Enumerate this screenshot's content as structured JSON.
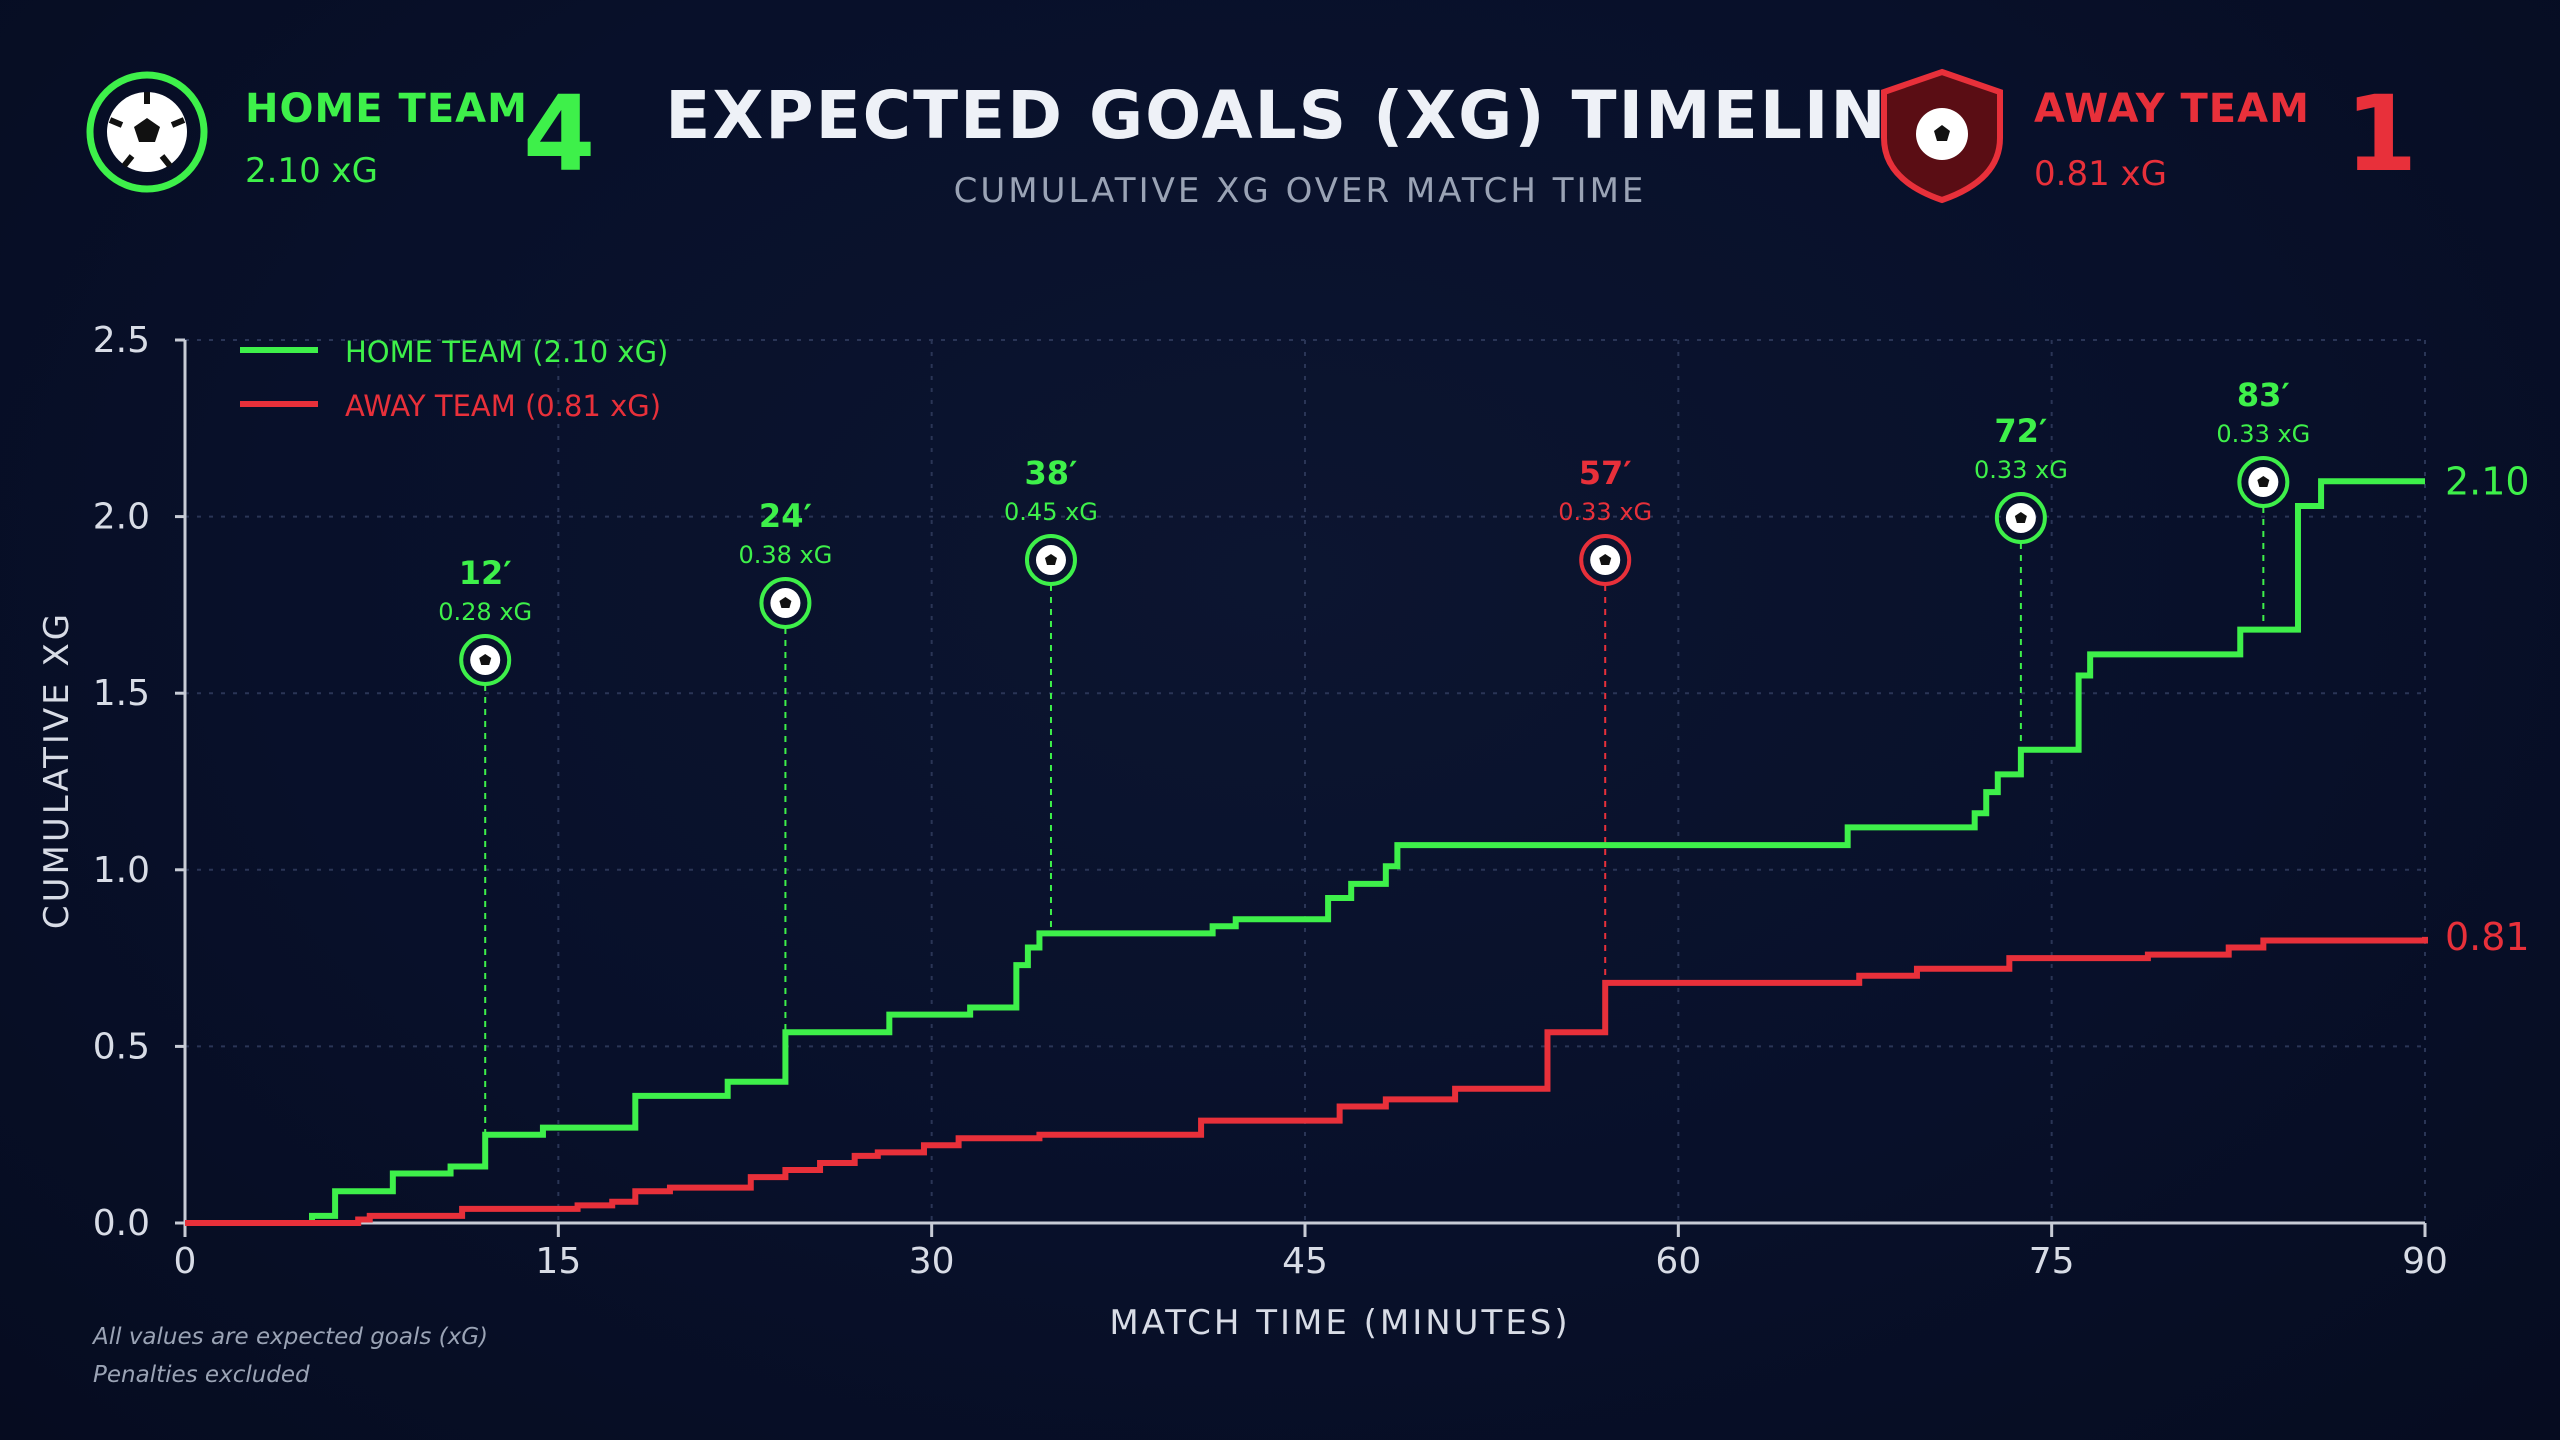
{
  "header": {
    "title": "EXPECTED GOALS (XG) TIMELINE",
    "subtitle": "CUMULATIVE XG OVER MATCH TIME"
  },
  "home": {
    "name": "HOME TEAM",
    "xg_text": "2.10 xG",
    "score": "4",
    "color": "#3ef04a",
    "icon": "soccer-ball-icon"
  },
  "away": {
    "name": "AWAY TEAM",
    "xg_text": "0.81 xG",
    "score": "1",
    "color": "#e8303a",
    "icon": "shield-crest-icon"
  },
  "footnotes": [
    "All values are expected goals (xG)",
    "Penalties excluded"
  ],
  "chart_data": {
    "type": "line",
    "step": true,
    "xlabel": "MATCH TIME (MINUTES)",
    "ylabel": "CUMULATIVE XG",
    "xlim": [
      0,
      90
    ],
    "ylim": [
      0,
      2.5
    ],
    "xticks": [
      0,
      15,
      30,
      45,
      60,
      75,
      90
    ],
    "yticks": [
      "0.0",
      "0.5",
      "1.0",
      "1.5",
      "2.0",
      "2.5"
    ],
    "grid": true,
    "legend_position": "top-left",
    "series": [
      {
        "name": "HOME TEAM (2.10 xG)",
        "color": "#3ef04a",
        "end_label": "2.10",
        "points": [
          [
            0,
            0
          ],
          [
            5.5,
            0.02
          ],
          [
            6.5,
            0.09
          ],
          [
            9,
            0.14
          ],
          [
            11.5,
            0.16
          ],
          [
            13,
            0.25
          ],
          [
            15.5,
            0.27
          ],
          [
            19.5,
            0.36
          ],
          [
            23.5,
            0.4
          ],
          [
            26,
            0.54
          ],
          [
            30.5,
            0.59
          ],
          [
            34,
            0.61
          ],
          [
            36,
            0.73
          ],
          [
            36.5,
            0.78
          ],
          [
            37,
            0.82
          ],
          [
            44.5,
            0.84
          ],
          [
            45.5,
            0.86
          ],
          [
            49.5,
            0.92
          ],
          [
            50.5,
            0.96
          ],
          [
            52,
            1.01
          ],
          [
            52.5,
            1.07
          ],
          [
            72,
            1.12
          ],
          [
            77.5,
            1.16
          ],
          [
            78,
            1.22
          ],
          [
            78.5,
            1.27
          ],
          [
            79.5,
            1.34
          ],
          [
            82,
            1.55
          ],
          [
            82.5,
            1.61
          ],
          [
            89,
            1.68
          ],
          [
            91.5,
            2.03
          ],
          [
            92.5,
            2.1
          ],
          [
            97,
            2.1
          ]
        ]
      },
      {
        "name": "AWAY TEAM (0.81 xG)",
        "color": "#e8303a",
        "end_label": "0.81",
        "points": [
          [
            0,
            0
          ],
          [
            7.5,
            0.01
          ],
          [
            8,
            0.02
          ],
          [
            12,
            0.04
          ],
          [
            17,
            0.05
          ],
          [
            18.5,
            0.06
          ],
          [
            19.5,
            0.09
          ],
          [
            21,
            0.1
          ],
          [
            22.5,
            0.1
          ],
          [
            24.5,
            0.13
          ],
          [
            26,
            0.15
          ],
          [
            27.5,
            0.17
          ],
          [
            29,
            0.19
          ],
          [
            30,
            0.2
          ],
          [
            32,
            0.22
          ],
          [
            33.5,
            0.24
          ],
          [
            37,
            0.25
          ],
          [
            42,
            0.25
          ],
          [
            44,
            0.29
          ],
          [
            48,
            0.29
          ],
          [
            50,
            0.33
          ],
          [
            52,
            0.35
          ],
          [
            55,
            0.38
          ],
          [
            59,
            0.54
          ],
          [
            61.5,
            0.68
          ],
          [
            72.5,
            0.7
          ],
          [
            75,
            0.72
          ],
          [
            79,
            0.75
          ],
          [
            85,
            0.76
          ],
          [
            88.5,
            0.78
          ],
          [
            90,
            0.8
          ],
          [
            97,
            0.81
          ]
        ]
      }
    ],
    "annotations": [
      {
        "minute": "12′",
        "xg": "0.28 xG",
        "x": 13,
        "team": "home"
      },
      {
        "minute": "24′",
        "xg": "0.38 xG",
        "x": 26,
        "team": "home"
      },
      {
        "minute": "38′",
        "xg": "0.45 xG",
        "x": 37.5,
        "team": "home"
      },
      {
        "minute": "57′",
        "xg": "0.33 xG",
        "x": 61.5,
        "team": "away"
      },
      {
        "minute": "72′",
        "xg": "0.33 xG",
        "x": 79.5,
        "team": "home"
      },
      {
        "minute": "83′",
        "xg": "0.33 xG",
        "x": 90,
        "team": "home"
      }
    ]
  }
}
